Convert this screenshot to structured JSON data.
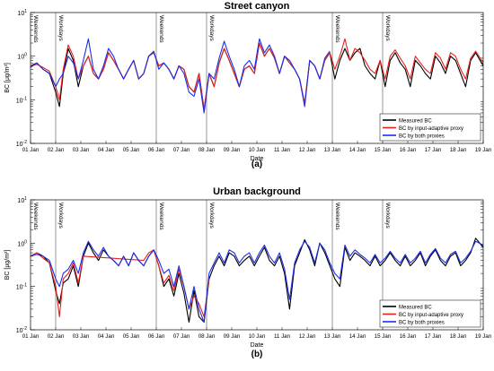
{
  "chart_data": [
    {
      "type": "line",
      "title": "Street canyon",
      "caption": "(a)",
      "xlabel": "Date",
      "ylabel": "BC [μg/m³]",
      "yscale": "log",
      "ylim": [
        0.01,
        10
      ],
      "xlim": [
        1,
        19
      ],
      "x_ticks": [
        "01 Jan",
        "02 Jan",
        "03 Jan",
        "04 Jan",
        "05 Jan",
        "06 Jan",
        "07 Jan",
        "08 Jan",
        "09 Jan",
        "10 Jan",
        "11 Jan",
        "12 Jan",
        "13 Jan",
        "14 Jan",
        "15 Jan",
        "16 Jan",
        "17 Jan",
        "18 Jan",
        "19 Jan"
      ],
      "y_ticks": [
        "10^-2",
        "10^-1",
        "10^0",
        "10^1"
      ],
      "annotations": [
        {
          "text": "Weekends",
          "x": 1.0
        },
        {
          "text": "Workdays",
          "x": 2.0
        },
        {
          "text": "Weekends",
          "x": 6.0
        },
        {
          "text": "Workdays",
          "x": 8.0
        },
        {
          "text": "Weekends",
          "x": 13.0
        },
        {
          "text": "Workdays",
          "x": 15.0
        }
      ],
      "legend_position": "bottom-right",
      "series": [
        {
          "name": "Measured BC",
          "color": "#000000",
          "x": [
            1.0,
            1.25,
            1.5,
            1.75,
            2.0,
            2.15,
            2.3,
            2.5,
            2.7,
            2.9,
            3.1,
            3.3,
            3.5,
            3.7,
            3.9,
            4.1,
            4.3,
            4.5,
            4.7,
            4.9,
            5.1,
            5.3,
            5.5,
            5.7,
            5.9,
            6.1,
            6.3,
            6.5,
            6.7,
            6.9,
            7.1,
            7.3,
            7.5,
            7.7,
            7.9,
            8.1,
            8.3,
            8.5,
            8.7,
            8.9,
            9.1,
            9.3,
            9.5,
            9.7,
            9.9,
            10.1,
            10.3,
            10.5,
            10.7,
            10.9,
            11.1,
            11.3,
            11.5,
            11.7,
            11.9,
            12.1,
            12.3,
            12.5,
            12.7,
            12.9,
            13.1,
            13.3,
            13.5,
            13.7,
            13.9,
            14.1,
            14.3,
            14.5,
            14.7,
            14.9,
            15.1,
            15.3,
            15.5,
            15.7,
            15.9,
            16.1,
            16.3,
            16.5,
            16.7,
            16.9,
            17.1,
            17.3,
            17.5,
            17.7,
            17.9,
            18.1,
            18.3,
            18.5,
            18.7,
            19.0
          ],
          "y": [
            0.6,
            0.7,
            0.5,
            0.4,
            0.15,
            0.07,
            0.4,
            1.5,
            0.8,
            0.2,
            0.6,
            1.0,
            0.4,
            0.3,
            0.5,
            1.2,
            0.8,
            0.5,
            0.3,
            0.5,
            0.8,
            0.3,
            0.4,
            1.0,
            1.2,
            0.6,
            0.7,
            0.5,
            0.3,
            0.6,
            0.5,
            0.2,
            0.15,
            0.4,
            0.06,
            0.4,
            0.2,
            0.7,
            1.5,
            0.8,
            0.4,
            0.2,
            0.5,
            0.6,
            0.4,
            2.0,
            1.0,
            1.5,
            0.9,
            0.4,
            1.0,
            0.7,
            0.5,
            0.3,
            0.08,
            0.8,
            0.6,
            0.3,
            0.8,
            1.2,
            0.3,
            0.8,
            1.5,
            0.8,
            1.2,
            1.5,
            0.6,
            0.4,
            0.3,
            0.8,
            0.2,
            0.8,
            1.2,
            0.7,
            0.5,
            0.2,
            0.8,
            0.6,
            0.4,
            0.3,
            1.0,
            0.7,
            0.4,
            1.0,
            0.8,
            0.4,
            0.2,
            0.8,
            1.2,
            0.6
          ]
        },
        {
          "name": "BC by input-adaptive proxy",
          "color": "#e8211d",
          "x": [
            1.0,
            1.25,
            1.5,
            1.75,
            2.0,
            2.15,
            2.3,
            2.5,
            2.7,
            2.9,
            3.1,
            3.3,
            3.5,
            3.7,
            3.9,
            4.1,
            4.3,
            4.5,
            4.7,
            4.9,
            5.1,
            5.3,
            5.5,
            5.7,
            5.9,
            6.1,
            6.3,
            6.5,
            6.7,
            6.9,
            7.1,
            7.3,
            7.5,
            7.7,
            7.9,
            8.1,
            8.3,
            8.5,
            8.7,
            8.9,
            9.1,
            9.3,
            9.5,
            9.7,
            9.9,
            10.1,
            10.3,
            10.5,
            10.7,
            10.9,
            11.1,
            11.3,
            11.5,
            11.7,
            11.9,
            12.1,
            12.3,
            12.5,
            12.7,
            12.9,
            13.1,
            13.3,
            13.5,
            13.7,
            13.9,
            14.1,
            14.3,
            14.5,
            14.7,
            14.9,
            15.1,
            15.3,
            15.5,
            15.7,
            15.9,
            16.1,
            16.3,
            16.5,
            16.7,
            16.9,
            17.1,
            17.3,
            17.5,
            17.7,
            17.9,
            18.1,
            18.3,
            18.5,
            18.7,
            19.0
          ],
          "y": [
            0.6,
            0.65,
            0.55,
            0.45,
            0.2,
            0.1,
            0.5,
            1.8,
            1.0,
            0.3,
            0.6,
            1.0,
            0.4,
            0.3,
            0.5,
            1.2,
            0.8,
            0.5,
            0.3,
            0.5,
            0.8,
            0.3,
            0.4,
            1.0,
            1.2,
            0.6,
            0.7,
            0.5,
            0.3,
            0.6,
            0.5,
            0.2,
            0.15,
            0.4,
            0.06,
            0.4,
            0.2,
            0.7,
            1.5,
            0.8,
            0.4,
            0.2,
            0.5,
            0.6,
            0.4,
            2.0,
            1.0,
            1.5,
            0.9,
            0.4,
            1.0,
            0.7,
            0.5,
            0.3,
            0.08,
            0.8,
            0.6,
            0.3,
            0.8,
            1.2,
            0.5,
            1.0,
            2.5,
            0.8,
            1.5,
            1.2,
            0.8,
            0.5,
            0.4,
            0.8,
            0.3,
            1.0,
            1.4,
            0.9,
            0.6,
            0.3,
            1.0,
            0.7,
            0.5,
            0.4,
            1.2,
            0.9,
            0.5,
            1.2,
            1.0,
            0.5,
            0.3,
            0.9,
            1.3,
            0.7
          ]
        },
        {
          "name": "BC by both proxies",
          "color": "#1d2ee8",
          "x": [
            1.0,
            1.25,
            1.5,
            1.75,
            2.0,
            2.15,
            2.3,
            2.5,
            2.7,
            2.9,
            3.1,
            3.3,
            3.5,
            3.7,
            3.9,
            4.1,
            4.3,
            4.5,
            4.7,
            4.9,
            5.1,
            5.3,
            5.5,
            5.7,
            5.9,
            6.1,
            6.3,
            6.5,
            6.7,
            6.9,
            7.1,
            7.3,
            7.5,
            7.7,
            7.9,
            8.1,
            8.3,
            8.5,
            8.7,
            8.9,
            9.1,
            9.3,
            9.5,
            9.7,
            9.9,
            10.1,
            10.3,
            10.5,
            10.7,
            10.9,
            11.1,
            11.3,
            11.5,
            11.7,
            11.9,
            12.1,
            12.3,
            12.5,
            12.7,
            12.9
          ],
          "y": [
            0.55,
            0.7,
            0.5,
            0.4,
            0.2,
            0.3,
            0.4,
            1.0,
            0.7,
            0.3,
            0.8,
            2.5,
            0.5,
            0.3,
            0.6,
            1.5,
            1.0,
            0.5,
            0.3,
            0.5,
            0.8,
            0.3,
            0.4,
            1.0,
            1.3,
            0.5,
            0.7,
            0.5,
            0.3,
            0.6,
            0.4,
            0.15,
            0.12,
            0.3,
            0.05,
            0.4,
            0.3,
            0.9,
            2.2,
            1.0,
            0.5,
            0.2,
            0.6,
            0.8,
            0.5,
            2.5,
            1.2,
            1.8,
            1.0,
            0.4,
            1.0,
            0.8,
            0.5,
            0.3,
            0.07,
            0.8,
            0.6,
            0.3,
            0.9,
            1.3
          ]
        }
      ]
    },
    {
      "type": "line",
      "title": "Urban background",
      "caption": "(b)",
      "xlabel": "Date",
      "ylabel": "BC [μg/m³]",
      "yscale": "log",
      "ylim": [
        0.01,
        10
      ],
      "xlim": [
        1,
        19
      ],
      "x_ticks": [
        "01 Jan",
        "02 Jan",
        "03 Jan",
        "04 Jan",
        "05 Jan",
        "06 Jan",
        "07 Jan",
        "08 Jan",
        "09 Jan",
        "10 Jan",
        "11 Jan",
        "12 Jan",
        "13 Jan",
        "14 Jan",
        "15 Jan",
        "16 Jan",
        "17 Jan",
        "18 Jan",
        "19 Jan"
      ],
      "y_ticks": [
        "10^-2",
        "10^-1",
        "10^0",
        "10^1"
      ],
      "annotations": [
        {
          "text": "Weekends",
          "x": 1.0
        },
        {
          "text": "Workdays",
          "x": 2.0
        },
        {
          "text": "Weekends",
          "x": 6.0
        },
        {
          "text": "Workdays",
          "x": 8.0
        },
        {
          "text": "Weekends",
          "x": 13.0
        },
        {
          "text": "Workdays",
          "x": 15.0
        }
      ],
      "legend_position": "bottom-right",
      "series": [
        {
          "name": "Measured BC",
          "color": "#000000",
          "x": [
            1.0,
            1.25,
            1.5,
            1.75,
            2.0,
            2.15,
            2.3,
            2.5,
            2.7,
            2.9,
            3.1,
            3.3,
            3.5,
            3.7,
            3.9,
            4.1,
            4.3,
            4.5,
            4.7,
            4.9,
            5.1,
            5.3,
            5.5,
            5.7,
            5.9,
            6.1,
            6.3,
            6.5,
            6.7,
            6.9,
            7.1,
            7.3,
            7.5,
            7.7,
            7.9,
            8.1,
            8.3,
            8.5,
            8.7,
            8.9,
            9.1,
            9.3,
            9.5,
            9.7,
            9.9,
            10.1,
            10.3,
            10.5,
            10.7,
            10.9,
            11.1,
            11.3,
            11.5,
            11.7,
            11.9,
            12.1,
            12.3,
            12.5,
            12.7,
            12.9,
            13.1,
            13.3,
            13.5,
            13.7,
            13.9,
            14.1,
            14.3,
            14.5,
            14.7,
            14.9,
            15.1,
            15.3,
            15.5,
            15.7,
            15.9,
            16.1,
            16.3,
            16.5,
            16.7,
            16.9,
            17.1,
            17.3,
            17.5,
            17.7,
            17.9,
            18.1,
            18.3,
            18.5,
            18.7,
            19.0
          ],
          "y": [
            0.5,
            0.6,
            0.5,
            0.35,
            0.08,
            0.04,
            0.12,
            0.15,
            0.3,
            0.1,
            0.5,
            1.0,
            0.6,
            0.4,
            0.7,
            0.5,
            0.4,
            0.3,
            0.5,
            0.3,
            0.6,
            0.4,
            0.3,
            0.5,
            0.7,
            0.3,
            0.1,
            0.15,
            0.06,
            0.2,
            0.07,
            0.015,
            0.08,
            0.02,
            0.015,
            0.15,
            0.3,
            0.5,
            0.3,
            0.6,
            0.5,
            0.3,
            0.4,
            0.5,
            0.3,
            0.5,
            0.8,
            0.4,
            0.3,
            0.5,
            0.2,
            0.03,
            0.3,
            0.6,
            1.2,
            0.7,
            0.3,
            1.0,
            0.6,
            0.3,
            0.15,
            0.1,
            0.8,
            0.4,
            0.6,
            0.5,
            0.4,
            0.3,
            0.5,
            0.3,
            0.4,
            0.6,
            0.4,
            0.3,
            0.5,
            0.3,
            0.4,
            0.6,
            0.3,
            0.5,
            0.7,
            0.4,
            0.3,
            0.5,
            0.6,
            0.3,
            0.4,
            0.6,
            1.3,
            0.8
          ]
        },
        {
          "name": "BC by input-adaptive proxy",
          "color": "#e8211d",
          "x": [
            1.0,
            1.25,
            1.5,
            1.75,
            2.0,
            2.15,
            2.3,
            2.5,
            2.7,
            2.9,
            3.1,
            5.5,
            5.7,
            5.9,
            6.1,
            6.3,
            6.5,
            6.7,
            6.9,
            7.1,
            7.3,
            7.5,
            7.7,
            7.9,
            8.1
          ],
          "y": [
            0.5,
            0.6,
            0.45,
            0.35,
            0.1,
            0.02,
            0.15,
            0.2,
            0.35,
            0.12,
            0.5,
            0.4,
            0.6,
            0.7,
            0.3,
            0.12,
            0.18,
            0.08,
            0.25,
            0.1,
            0.03,
            0.06,
            0.04,
            0.02,
            0.15
          ]
        },
        {
          "name": "BC by both proxies",
          "color": "#1d2ee8",
          "x": [
            1.0,
            1.25,
            1.5,
            1.75,
            2.0,
            2.15,
            2.3,
            2.5,
            2.7,
            2.9,
            3.1,
            3.3,
            3.5,
            3.7,
            3.9,
            4.1,
            4.3,
            4.5,
            4.7,
            4.9,
            5.1,
            5.3,
            5.5,
            5.7,
            5.9,
            6.1,
            6.3,
            6.5,
            6.7,
            6.9,
            7.1,
            7.3,
            7.5,
            7.7,
            7.9,
            8.1,
            8.3,
            8.5,
            8.7,
            8.9,
            9.1,
            9.3,
            9.5,
            9.7,
            9.9,
            10.1,
            10.3,
            10.5,
            10.7,
            10.9,
            11.1,
            11.3,
            11.5,
            11.7,
            11.9,
            12.1,
            12.3,
            12.5,
            12.7,
            12.9,
            13.1,
            13.3,
            13.5,
            13.7,
            13.9,
            14.1,
            14.3,
            14.5,
            14.7,
            14.9,
            15.1,
            15.3,
            15.5,
            15.7,
            15.9,
            16.1,
            16.3,
            16.5,
            16.7,
            16.9,
            17.1,
            17.3,
            17.5,
            17.7,
            17.9,
            18.1,
            18.3,
            18.5,
            18.7,
            19.0
          ],
          "y": [
            0.5,
            0.55,
            0.5,
            0.4,
            0.15,
            0.1,
            0.2,
            0.25,
            0.4,
            0.2,
            0.6,
            1.1,
            0.7,
            0.5,
            0.8,
            0.5,
            0.4,
            0.3,
            0.5,
            0.3,
            0.6,
            0.4,
            0.3,
            0.5,
            0.7,
            0.4,
            0.2,
            0.25,
            0.1,
            0.3,
            0.1,
            0.03,
            0.1,
            0.03,
            0.015,
            0.2,
            0.35,
            0.6,
            0.35,
            0.7,
            0.6,
            0.35,
            0.5,
            0.6,
            0.35,
            0.6,
            0.9,
            0.5,
            0.35,
            0.6,
            0.25,
            0.05,
            0.35,
            0.7,
            1.1,
            0.8,
            0.35,
            1.0,
            0.7,
            0.35,
            0.2,
            0.15,
            0.9,
            0.5,
            0.7,
            0.55,
            0.45,
            0.35,
            0.55,
            0.35,
            0.45,
            0.65,
            0.45,
            0.35,
            0.55,
            0.35,
            0.45,
            0.65,
            0.35,
            0.55,
            0.75,
            0.45,
            0.35,
            0.55,
            0.65,
            0.35,
            0.45,
            0.65,
            1.1,
            0.9
          ]
        }
      ]
    }
  ]
}
